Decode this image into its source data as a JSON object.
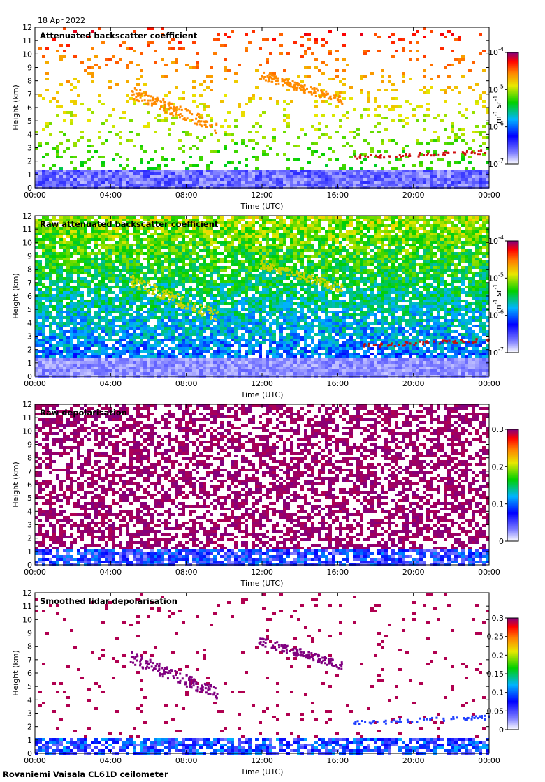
{
  "date": "18 Apr 2022",
  "footer": "Rovaniemi Vaisala CL61D ceilometer",
  "chart_data": [
    {
      "type": "heatmap",
      "title": "Attenuated backscatter coefficient",
      "xlabel": "Time (UTC)",
      "ylabel": "Height (km)",
      "xticks": [
        "00:00",
        "04:00",
        "08:00",
        "12:00",
        "16:00",
        "20:00",
        "00:00"
      ],
      "yticks": [
        "0",
        "1",
        "2",
        "3",
        "4",
        "5",
        "6",
        "7",
        "8",
        "9",
        "10",
        "11",
        "12"
      ],
      "xlim": [
        0,
        24
      ],
      "ylim": [
        0,
        12
      ],
      "colorbar": {
        "scale": "log",
        "ticks": [
          "10^-7",
          "10^-6",
          "10^-5",
          "10^-4"
        ],
        "label": "m^-1 sr^-1",
        "unit_prefix": "m",
        "unit_sup1": "-1",
        "unit_mid": " sr",
        "unit_sup2": "-1"
      },
      "colormap": "jet",
      "features": [
        {
          "name": "cloud",
          "t": [
            5.0,
            9.6
          ],
          "h": [
            4.1,
            7.7
          ]
        },
        {
          "name": "cloud",
          "t": [
            11.8,
            16.2
          ],
          "h": [
            6.3,
            8.8
          ]
        },
        {
          "name": "boundary layer",
          "t": [
            0,
            24
          ],
          "h": [
            0,
            1.6
          ]
        },
        {
          "name": "low cloud",
          "t": [
            16.8,
            24
          ],
          "h": [
            1.8,
            2.9
          ]
        }
      ]
    },
    {
      "type": "heatmap",
      "title": "Raw attenuated backscatter coefficient",
      "xlabel": "Time (UTC)",
      "ylabel": "Height (km)",
      "xticks": [
        "00:00",
        "04:00",
        "08:00",
        "12:00",
        "16:00",
        "20:00",
        "00:00"
      ],
      "yticks": [
        "0",
        "1",
        "2",
        "3",
        "4",
        "5",
        "6",
        "7",
        "8",
        "9",
        "10",
        "11",
        "12"
      ],
      "xlim": [
        0,
        24
      ],
      "ylim": [
        0,
        12
      ],
      "colorbar": {
        "scale": "log",
        "ticks": [
          "10^-7",
          "10^-6",
          "10^-5",
          "10^-4"
        ],
        "label": "m^-1 sr^-1",
        "unit_prefix": "m",
        "unit_sup1": "-1",
        "unit_mid": " sr",
        "unit_sup2": "-1"
      },
      "colormap": "jet"
    },
    {
      "type": "heatmap",
      "title": "Raw depolarisation",
      "xlabel": "Time (UTC)",
      "ylabel": "Height (km)",
      "xticks": [
        "00:00",
        "04:00",
        "08:00",
        "12:00",
        "16:00",
        "20:00",
        "00:00"
      ],
      "yticks": [
        "0",
        "1",
        "2",
        "3",
        "4",
        "5",
        "6",
        "7",
        "8",
        "9",
        "10",
        "11",
        "12"
      ],
      "xlim": [
        0,
        24
      ],
      "ylim": [
        0,
        12
      ],
      "colorbar": {
        "scale": "linear",
        "ticks": [
          "0",
          "0.1",
          "0.2",
          "0.3"
        ],
        "range": [
          0,
          0.3
        ]
      },
      "colormap": "jet"
    },
    {
      "type": "heatmap",
      "title": "Smoothed lidar depolarisation",
      "xlabel": "Time (UTC)",
      "ylabel": "Height (km)",
      "xticks": [
        "00:00",
        "04:00",
        "08:00",
        "12:00",
        "16:00",
        "20:00",
        "00:00"
      ],
      "yticks": [
        "0",
        "1",
        "2",
        "3",
        "4",
        "5",
        "6",
        "7",
        "8",
        "9",
        "10",
        "11",
        "12"
      ],
      "xlim": [
        0,
        24
      ],
      "ylim": [
        0,
        12
      ],
      "colorbar": {
        "scale": "linear",
        "ticks": [
          "0",
          "0.05",
          "0.1",
          "0.15",
          "0.2",
          "0.25",
          "0.3"
        ],
        "range": [
          0,
          0.3
        ]
      },
      "colormap": "jet"
    }
  ]
}
